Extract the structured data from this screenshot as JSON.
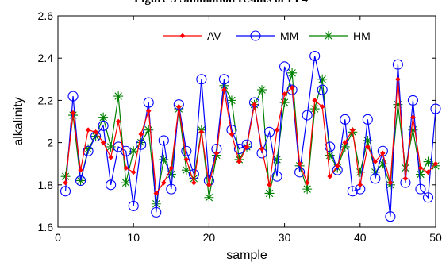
{
  "chart_data": {
    "type": "line",
    "title": "Figure 3 Simulation results of PF4",
    "xlabel": "sample",
    "ylabel": "alkalinity",
    "xlim": [
      0,
      50
    ],
    "ylim": [
      1.6,
      2.6
    ],
    "xticks": [
      0,
      10,
      20,
      30,
      40,
      50
    ],
    "yticks": [
      1.6,
      1.8,
      2.0,
      2.2,
      2.4,
      2.6
    ],
    "xtick_labels": [
      "0",
      "10",
      "20",
      "30",
      "40",
      "50"
    ],
    "ytick_labels": [
      "1.6",
      "1.8",
      "2",
      "2.2",
      "2.4",
      "2.6"
    ],
    "grid": false,
    "legend_position": "top-right",
    "x": [
      1,
      2,
      3,
      4,
      5,
      6,
      7,
      8,
      9,
      10,
      11,
      12,
      13,
      14,
      15,
      16,
      17,
      18,
      19,
      20,
      21,
      22,
      23,
      24,
      25,
      26,
      27,
      28,
      29,
      30,
      31,
      32,
      33,
      34,
      35,
      36,
      37,
      38,
      39,
      40,
      41,
      42,
      43,
      44,
      45,
      46,
      47,
      48,
      49,
      50
    ],
    "series": [
      {
        "name": "AV",
        "color": "#ff0000",
        "marker": "diamond",
        "values": [
          1.81,
          2.14,
          1.87,
          2.06,
          2.05,
          2.0,
          1.93,
          2.1,
          1.88,
          1.86,
          2.04,
          2.15,
          1.76,
          1.81,
          1.88,
          2.17,
          1.92,
          1.81,
          2.05,
          1.8,
          1.95,
          2.25,
          2.04,
          1.91,
          1.98,
          2.18,
          1.97,
          1.8,
          2.06,
          2.23,
          2.26,
          1.9,
          1.81,
          2.2,
          2.17,
          1.84,
          1.89,
          2.0,
          2.06,
          1.8,
          1.98,
          1.91,
          1.95,
          1.81,
          2.3,
          1.83,
          2.12,
          1.88,
          1.86,
          1.9
        ]
      },
      {
        "name": "MM",
        "color": "#0000ff",
        "marker": "circle",
        "values": [
          1.77,
          2.22,
          1.82,
          1.96,
          2.03,
          2.08,
          1.8,
          1.98,
          1.96,
          1.7,
          1.99,
          2.19,
          1.67,
          2.01,
          1.78,
          2.18,
          1.96,
          1.85,
          2.3,
          1.82,
          1.97,
          2.3,
          2.06,
          1.97,
          1.99,
          2.19,
          1.95,
          2.05,
          1.84,
          2.36,
          2.25,
          1.86,
          2.13,
          2.41,
          2.25,
          1.98,
          1.87,
          2.11,
          1.77,
          1.78,
          2.11,
          1.83,
          1.96,
          1.65,
          2.37,
          1.81,
          2.2,
          1.78,
          1.74,
          2.16
        ]
      },
      {
        "name": "HM",
        "color": "#008000",
        "marker": "star",
        "values": [
          1.84,
          2.13,
          1.82,
          1.97,
          2.03,
          2.12,
          1.98,
          2.22,
          1.81,
          1.96,
          2.0,
          2.06,
          1.71,
          1.92,
          1.85,
          2.16,
          1.87,
          1.83,
          2.06,
          1.74,
          1.94,
          2.27,
          2.2,
          1.92,
          1.98,
          2.18,
          2.25,
          1.76,
          1.92,
          2.19,
          2.33,
          1.89,
          1.78,
          2.16,
          2.3,
          1.94,
          1.88,
          1.98,
          2.05,
          1.86,
          2.01,
          1.86,
          1.9,
          1.8,
          2.18,
          1.88,
          2.06,
          1.85,
          1.91,
          1.89
        ]
      }
    ]
  }
}
